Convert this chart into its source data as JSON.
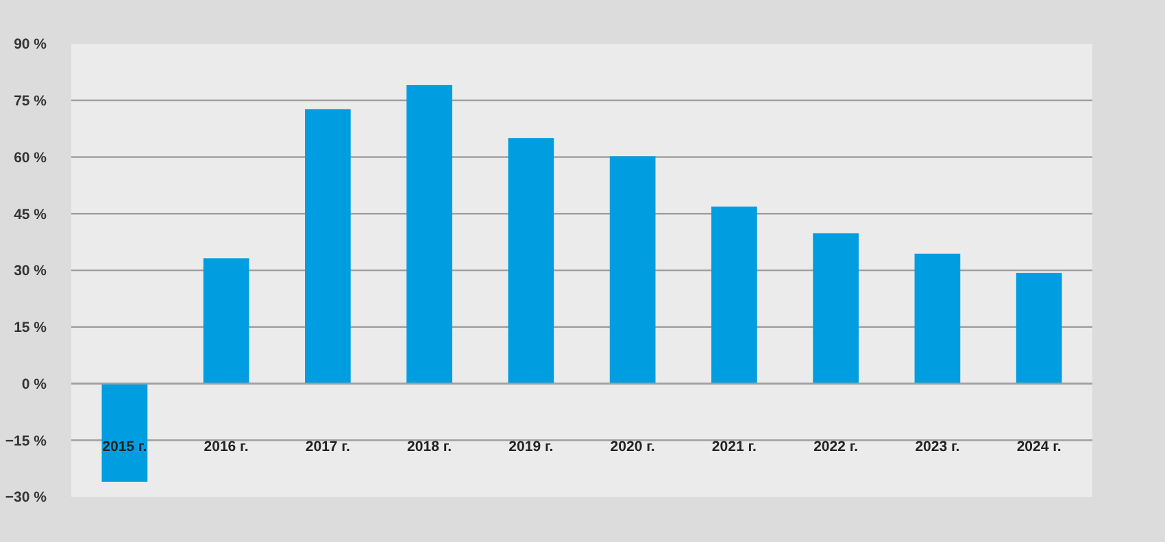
{
  "chart_data": {
    "type": "bar",
    "categories": [
      "2015 г.",
      "2016 г.",
      "2017 г.",
      "2018 г.",
      "2019 г.",
      "2020 г.",
      "2021 г.",
      "2022 г.",
      "2023 г.",
      "2024 г."
    ],
    "values": [
      -26,
      33.2,
      72.7,
      79.1,
      65,
      60.2,
      46.9,
      39.8,
      34.4,
      29.3
    ],
    "color": "#009ee0",
    "ylim": [
      -30,
      90
    ],
    "yticks": [
      {
        "value": -30,
        "label": "−30 %"
      },
      {
        "value": -15,
        "label": "−15 %"
      },
      {
        "value": 0,
        "label": "0 %"
      },
      {
        "value": 15,
        "label": "15 %"
      },
      {
        "value": 30,
        "label": "30 %"
      },
      {
        "value": 45,
        "label": "45 %"
      },
      {
        "value": 60,
        "label": "60 %"
      },
      {
        "value": 75,
        "label": "75 %"
      },
      {
        "value": 90,
        "label": "90 %"
      }
    ],
    "grid": "y"
  }
}
